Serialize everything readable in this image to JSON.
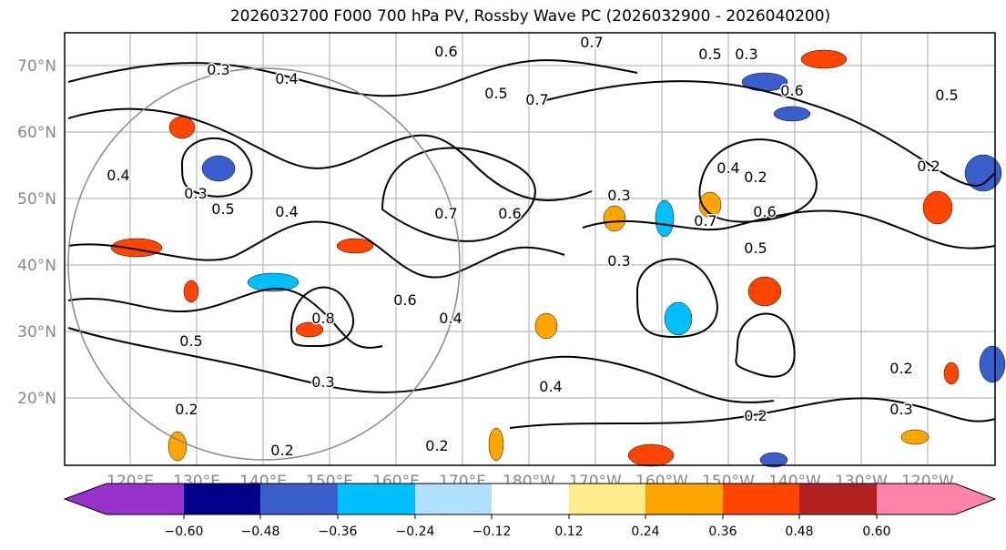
{
  "title": "2026032700 F000 700 hPa PV, Rossby Wave PC (2026032900 - 2026040200)",
  "map": {
    "lat_ticks": [
      "70°N",
      "60°N",
      "50°N",
      "40°N",
      "30°N",
      "20°N"
    ],
    "lon_ticks": [
      "120°E",
      "130°E",
      "140°E",
      "150°E",
      "160°E",
      "170°E",
      "180°W",
      "170°W",
      "160°W",
      "150°W",
      "140°W",
      "130°W",
      "120°W"
    ],
    "contour_labels": [
      "0.6",
      "0.7",
      "0.5",
      "0.4",
      "0.3",
      "0.3",
      "0.4",
      "0.5",
      "0.3",
      "0.6",
      "0.7",
      "0.5",
      "0.6",
      "0.2",
      "0.3",
      "0.7",
      "0.6",
      "0.5",
      "0.3",
      "0.4",
      "0.2",
      "0.2",
      "0.4",
      "0.2",
      "0.6",
      "0.8",
      "0.5",
      "0.3",
      "0.2",
      "0.2",
      "0.4",
      "0.2",
      "0.3",
      "0.7",
      "0.4",
      "0.5"
    ]
  },
  "colorbar": {
    "tick_labels": [
      "−0.60",
      "−0.48",
      "−0.36",
      "−0.24",
      "−0.12",
      "0.12",
      "0.24",
      "0.36",
      "0.48",
      "0.60"
    ],
    "colors": [
      "#9932cc",
      "#00008b",
      "#3a5fcd",
      "#00bfff",
      "#b0e2ff",
      "#ffffff",
      "#ffec8b",
      "#ffa500",
      "#ff4500",
      "#b22222",
      "#ff83a8"
    ]
  }
}
